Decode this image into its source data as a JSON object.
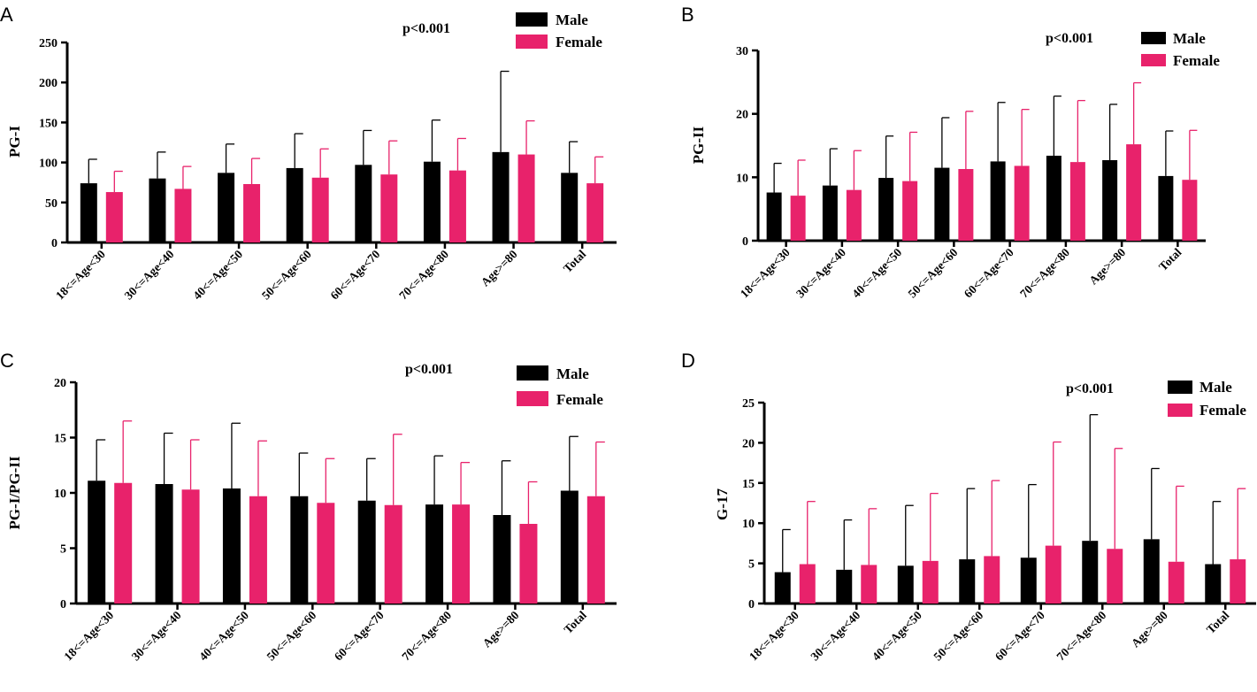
{
  "colors": {
    "male": "#000000",
    "female": "#e8226b",
    "axis": "#000000"
  },
  "chart_data": [
    {
      "panel": "A",
      "type": "bar",
      "title": "p<0.001",
      "ylabel": "PG-I",
      "xlabel": "",
      "ylim": [
        0,
        250
      ],
      "yticks": [
        0,
        50,
        100,
        150,
        200,
        250
      ],
      "legend": "top-right",
      "categories": [
        "18<=Age<30",
        "30<=Age<40",
        "40<=Age<50",
        "50<=Age<60",
        "60<=Age<70",
        "70<=Age<80",
        "Age>=80",
        "Total"
      ],
      "series": [
        {
          "name": "Male",
          "values": [
            74,
            80,
            87,
            93,
            97,
            101,
            113,
            87
          ],
          "errors": [
            30,
            33,
            36,
            43,
            43,
            52,
            101,
            39
          ]
        },
        {
          "name": "Female",
          "values": [
            63,
            67,
            73,
            81,
            85,
            90,
            110,
            74
          ],
          "errors": [
            26,
            28,
            32,
            36,
            42,
            40,
            42,
            33
          ]
        }
      ]
    },
    {
      "panel": "B",
      "type": "bar",
      "title": "p<0.001",
      "ylabel": "PG-II",
      "xlabel": "",
      "ylim": [
        0,
        30
      ],
      "yticks": [
        0,
        10,
        20,
        30
      ],
      "legend": "top-right",
      "categories": [
        "18<=Age<30",
        "30<=Age<40",
        "40<=Age<50",
        "50<=Age<60",
        "60<=Age<70",
        "70<=Age<80",
        "Age>=80",
        "Total"
      ],
      "series": [
        {
          "name": "Male",
          "values": [
            7.6,
            8.7,
            9.9,
            11.5,
            12.5,
            13.4,
            12.7,
            10.2
          ],
          "errors": [
            4.6,
            5.8,
            6.6,
            7.9,
            9.3,
            9.4,
            8.8,
            7.1
          ]
        },
        {
          "name": "Female",
          "values": [
            7.1,
            8.0,
            9.4,
            11.3,
            11.8,
            12.4,
            15.2,
            9.6
          ],
          "errors": [
            5.6,
            6.2,
            7.7,
            9.1,
            8.9,
            9.7,
            9.7,
            7.8
          ]
        }
      ]
    },
    {
      "panel": "C",
      "type": "bar",
      "title": "p<0.001",
      "ylabel": "PG-I/PG-II",
      "xlabel": "",
      "ylim": [
        0,
        20
      ],
      "yticks": [
        0,
        5,
        10,
        15,
        20
      ],
      "legend": "top-right",
      "categories": [
        "18<=Age<30",
        "30<=Age<40",
        "40<=Age<50",
        "50<=Age<60",
        "60<=Age<70",
        "70<=Age<80",
        "Age>=80",
        "Total"
      ],
      "series": [
        {
          "name": "Male",
          "values": [
            11.1,
            10.8,
            10.4,
            9.7,
            9.3,
            8.95,
            8.0,
            10.2
          ],
          "errors": [
            3.7,
            4.6,
            5.9,
            3.9,
            3.8,
            4.4,
            4.9,
            4.9
          ]
        },
        {
          "name": "Female",
          "values": [
            10.9,
            10.3,
            9.7,
            9.1,
            8.9,
            8.95,
            7.2,
            9.7
          ],
          "errors": [
            5.6,
            4.5,
            5.0,
            4.0,
            6.4,
            3.8,
            3.8,
            4.9
          ]
        }
      ]
    },
    {
      "panel": "D",
      "type": "bar",
      "title": "p<0.001",
      "ylabel": "G-17",
      "xlabel": "",
      "ylim": [
        0,
        25
      ],
      "yticks": [
        0,
        5,
        10,
        15,
        20,
        25
      ],
      "legend": "top-right",
      "categories": [
        "18<=Age<30",
        "30<=Age<40",
        "40<=Age<50",
        "50<=Age<60",
        "60<=Age<70",
        "70<=Age<80",
        "Age>=80",
        "Total"
      ],
      "series": [
        {
          "name": "Male",
          "values": [
            3.9,
            4.2,
            4.7,
            5.5,
            5.7,
            7.8,
            8.0,
            4.9
          ],
          "errors": [
            5.3,
            6.2,
            7.5,
            8.8,
            9.1,
            15.7,
            8.8,
            7.8
          ]
        },
        {
          "name": "Female",
          "values": [
            4.9,
            4.8,
            5.3,
            5.9,
            7.2,
            6.8,
            5.2,
            5.5
          ],
          "errors": [
            7.8,
            7.0,
            8.4,
            9.4,
            12.9,
            12.5,
            9.4,
            8.8
          ]
        }
      ]
    }
  ]
}
